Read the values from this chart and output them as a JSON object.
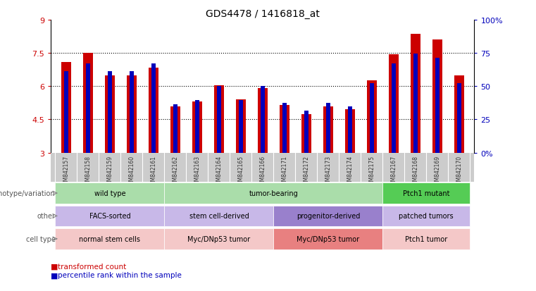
{
  "title": "GDS4478 / 1416818_at",
  "samples": [
    "GSM842157",
    "GSM842158",
    "GSM842159",
    "GSM842160",
    "GSM842161",
    "GSM842162",
    "GSM842163",
    "GSM842164",
    "GSM842165",
    "GSM842166",
    "GSM842171",
    "GSM842172",
    "GSM842173",
    "GSM842174",
    "GSM842175",
    "GSM842167",
    "GSM842168",
    "GSM842169",
    "GSM842170"
  ],
  "red_values": [
    7.1,
    7.5,
    6.5,
    6.5,
    6.85,
    5.1,
    5.3,
    6.05,
    5.4,
    5.9,
    5.15,
    4.75,
    5.1,
    4.95,
    6.25,
    7.45,
    8.35,
    8.1,
    6.5
  ],
  "blue_values": [
    0.615,
    0.67,
    0.615,
    0.615,
    0.67,
    0.365,
    0.395,
    0.5,
    0.395,
    0.5,
    0.375,
    0.315,
    0.375,
    0.345,
    0.52,
    0.67,
    0.745,
    0.715,
    0.52
  ],
  "ylim_left": [
    3,
    9
  ],
  "yticks_left": [
    3,
    4.5,
    6,
    7.5,
    9
  ],
  "yticks_left_labels": [
    "3",
    "4.5",
    "6",
    "7.5",
    "9"
  ],
  "yticks_right": [
    0,
    0.25,
    0.5,
    0.75,
    1.0
  ],
  "yticks_right_labels": [
    "0%",
    "25",
    "50",
    "75",
    "100%"
  ],
  "red_color": "#cc0000",
  "blue_color": "#0000bb",
  "grid_lines": [
    4.5,
    6.0,
    7.5
  ],
  "row_labels": [
    "genotype/variation",
    "other",
    "cell type"
  ],
  "groups": {
    "genotype": [
      {
        "label": "wild type",
        "start": 0,
        "end": 5,
        "color": "#aaddaa"
      },
      {
        "label": "tumor-bearing",
        "start": 5,
        "end": 15,
        "color": "#aaddaa"
      },
      {
        "label": "Ptch1 mutant",
        "start": 15,
        "end": 19,
        "color": "#55cc55"
      }
    ],
    "other": [
      {
        "label": "FACS-sorted",
        "start": 0,
        "end": 5,
        "color": "#c8b8e8"
      },
      {
        "label": "stem cell-derived",
        "start": 5,
        "end": 10,
        "color": "#c8b8e8"
      },
      {
        "label": "progenitor-derived",
        "start": 10,
        "end": 15,
        "color": "#9980cc"
      },
      {
        "label": "patched tumors",
        "start": 15,
        "end": 19,
        "color": "#c8b8e8"
      }
    ],
    "celltype": [
      {
        "label": "normal stem cells",
        "start": 0,
        "end": 5,
        "color": "#f4c8c8"
      },
      {
        "label": "Myc/DNp53 tumor",
        "start": 5,
        "end": 10,
        "color": "#f4c8c8"
      },
      {
        "label": "Myc/DNp53 tumor",
        "start": 10,
        "end": 15,
        "color": "#e88080"
      },
      {
        "label": "Ptch1 tumor",
        "start": 15,
        "end": 19,
        "color": "#f4c8c8"
      }
    ]
  },
  "background_color": "#ffffff",
  "xtick_bg_color": "#cccccc"
}
